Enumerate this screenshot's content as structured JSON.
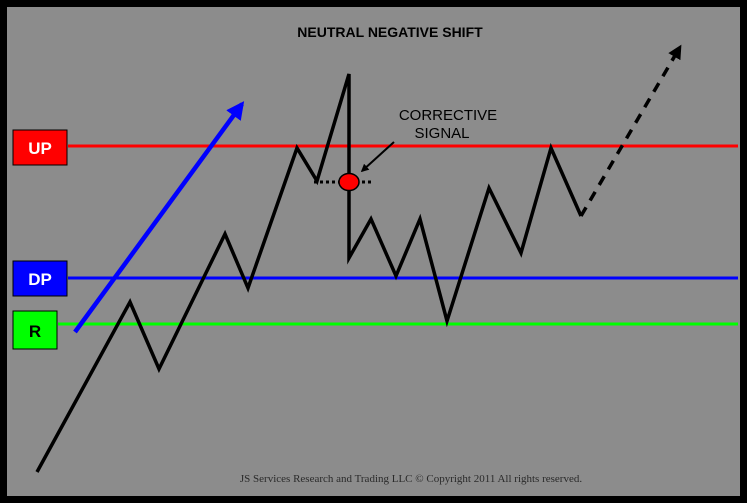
{
  "title": "NEUTRAL NEGATIVE SHIFT",
  "annotation": {
    "line1": "CORRECTIVE",
    "line2": "SIGNAL"
  },
  "copyright": "JS Services Research and Trading LLC © Copyright 2011 All rights reserved.",
  "levels": [
    {
      "id": "up",
      "label": "UP",
      "color": "#ff0000",
      "label_text_color": "#ffffff"
    },
    {
      "id": "dp",
      "label": "DP",
      "color": "#0000ff",
      "label_text_color": "#ffffff"
    },
    {
      "id": "r",
      "label": "R",
      "color": "#00ff00",
      "label_text_color": "#000000"
    }
  ],
  "colors": {
    "background": "#8c8c8c",
    "frame": "#000000",
    "price_path": "#000000",
    "trend_arrow": "#0000ff",
    "signal_dot": "#ff0000"
  }
}
